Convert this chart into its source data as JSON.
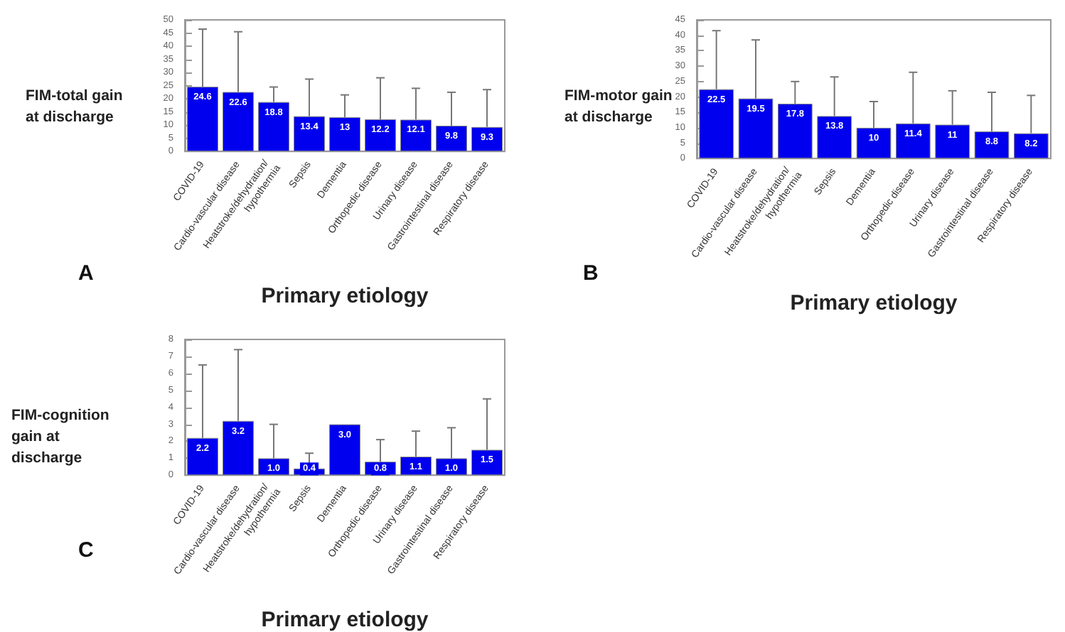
{
  "chart_data": [
    {
      "type": "bar",
      "ylabel": "FIM-total gain at discharge",
      "xlabel": "Primary etiology",
      "annotations": [
        "A"
      ],
      "categories": [
        "COVID-19",
        "Cardio-vascular disease",
        "Heatstroke/dehydration/ hypothermia",
        "Sepsis",
        "Dementia",
        "Orthopedic disease",
        "Urinary disease",
        "Gastrointestinal disease",
        "Respiratory disease"
      ],
      "values": [
        24.6,
        22.6,
        18.8,
        13.4,
        13,
        12.2,
        12.1,
        9.8,
        9.3
      ],
      "color": "#0000ee",
      "errors": [
        [
          24.6,
          46.5
        ],
        [
          22.6,
          45.5
        ],
        [
          18.8,
          24.5
        ],
        [
          13.4,
          27.5
        ],
        [
          13,
          21.5
        ],
        [
          12.2,
          28
        ],
        [
          12.1,
          24
        ],
        [
          9.8,
          22.5
        ],
        [
          9.3,
          23.5
        ]
      ],
      "ylim": [
        0,
        50
      ],
      "yticks": [
        0,
        5,
        10,
        15,
        20,
        25,
        30,
        35,
        40,
        45,
        50
      ],
      "grid": false,
      "data_labels": true
    },
    {
      "type": "bar",
      "ylabel": "FIM-motor gain at discharge",
      "xlabel": "Primary etiology",
      "annotations": [
        "B"
      ],
      "categories": [
        "COVID-19",
        "Cardio-vascular disease",
        "Heatstroke/dehydration/ hypothermia",
        "Sepsis",
        "Dementia",
        "Orthopedic disease",
        "Urinary disease",
        "Gastrointestinal disease",
        "Respiratory disease"
      ],
      "values": [
        22.5,
        19.5,
        17.8,
        13.8,
        10,
        11.4,
        11,
        8.8,
        8.2
      ],
      "color": "#0000ee",
      "errors": [
        [
          22.5,
          41.5
        ],
        [
          19.5,
          38.5
        ],
        [
          17.8,
          25
        ],
        [
          13.8,
          26.5
        ],
        [
          10,
          18.5
        ],
        [
          11.4,
          28
        ],
        [
          11,
          22
        ],
        [
          8.8,
          21.5
        ],
        [
          8.2,
          20.5
        ]
      ],
      "ylim": [
        0,
        45
      ],
      "yticks": [
        0,
        5,
        10,
        15,
        20,
        25,
        30,
        35,
        40,
        45
      ],
      "grid": false,
      "data_labels": true
    },
    {
      "type": "bar",
      "ylabel": "FIM-cognition  gain at discharge",
      "xlabel": "Primary etiology",
      "annotations": [
        "C"
      ],
      "categories": [
        "COVID-19",
        "Cardio-vascular disease",
        "Heatstroke/dehydration/ hypothermia",
        "Sepsis",
        "Dementia",
        "Orthopedic disease",
        "Urinary disease",
        "Gastrointestinal disease",
        "Respiratory disease"
      ],
      "values": [
        2.2,
        3.2,
        1.0,
        0.4,
        3.0,
        0.8,
        1.1,
        1.0,
        1.5
      ],
      "color": "#0000ee",
      "value_labels": [
        "2.2",
        "3.2",
        "1.0",
        "0.4",
        "3.0",
        "0.8",
        "1.1",
        "1.0",
        "1.5"
      ],
      "errors": [
        [
          2.2,
          6.5
        ],
        [
          3.2,
          7.4
        ],
        [
          1.0,
          3.0
        ],
        [
          0.4,
          1.3
        ],
        null,
        [
          0.8,
          2.1
        ],
        [
          1.1,
          2.6
        ],
        [
          1.0,
          2.8
        ],
        [
          1.5,
          4.5
        ]
      ],
      "ylim": [
        0,
        8
      ],
      "yticks": [
        0,
        1,
        2,
        3,
        4,
        5,
        6,
        7,
        8
      ],
      "grid": false
    }
  ]
}
